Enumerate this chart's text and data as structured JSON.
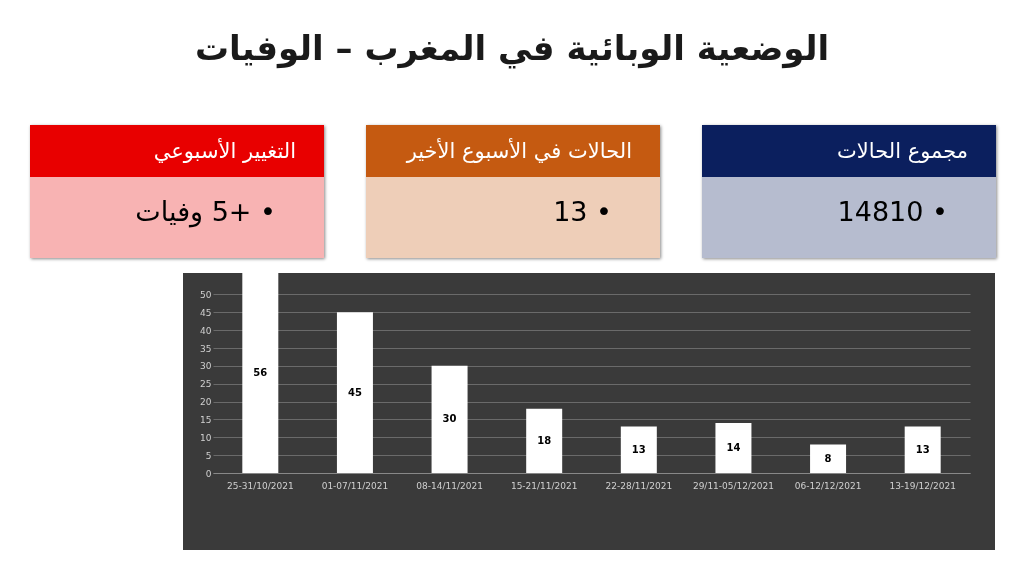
{
  "chart_data": [
    {
      "type": "other",
      "title": "الوضعية الوبائية في المغرب – الوفيات",
      "categories": [
        "مجموع الحالات",
        "الحالات في الأسبوع الأخير",
        "التغيير الأسبوعي"
      ],
      "annotations": [
        "• 14810",
        "• 13",
        "• +5 وفيات"
      ],
      "colors": [
        "#0b1f5e",
        "#c55a11",
        "#e80000"
      ]
    },
    {
      "type": "bar",
      "categories": [
        "25-31/10/2021",
        "01-07/11/2021",
        "08-14/11/2021",
        "15-21/11/2021",
        "22-28/11/2021",
        "29/11-05/12/2021",
        "06-12/12/2021",
        "13-19/12/2021"
      ],
      "values": [
        56,
        45,
        30,
        18,
        13,
        14,
        8,
        13
      ],
      "color": "#ffffff",
      "ylim": [
        0,
        56
      ],
      "yticks": [
        0,
        5,
        10,
        15,
        20,
        25,
        30,
        35,
        40,
        45,
        50
      ],
      "grid": "y",
      "data_labels": true
    }
  ]
}
